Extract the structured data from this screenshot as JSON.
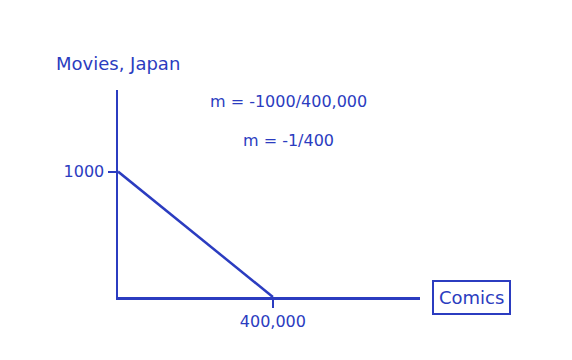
{
  "chart_data": {
    "type": "line",
    "x_label": "Comics",
    "y_label": "Movies, Japan",
    "x": [
      0,
      400000
    ],
    "values": [
      1000,
      0
    ],
    "color": "#2b3cc0",
    "xlim": [
      0,
      780000
    ],
    "ylim": [
      0,
      1650
    ],
    "xticks": [
      {
        "value": 400000,
        "label": "400,000"
      }
    ],
    "yticks": [
      1000
    ],
    "grid": false,
    "annotations": [
      {
        "text": "m = -1000/400,000",
        "x": 440000,
        "y": 1560
      },
      {
        "text": "m = -1/400",
        "x": 440000,
        "y": 1250
      }
    ]
  }
}
